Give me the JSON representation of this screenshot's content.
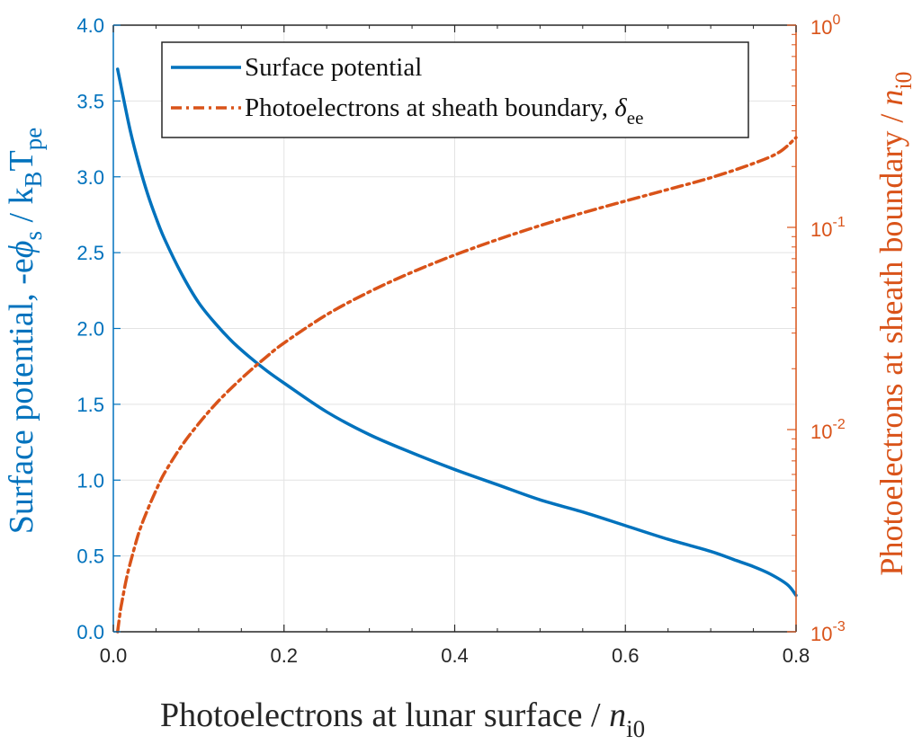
{
  "chart_data": {
    "type": "line",
    "xlabel": {
      "text": "Photoelectrons at lunar surface / ",
      "italic": "n",
      "sub": "i0"
    },
    "ylabel_left": {
      "text": "Surface potential,  -e",
      "phi": "ϕ",
      "sub_s": "s",
      "mid": " / k",
      "sub_b": "B",
      "t": "T",
      "sub_pe": "pe"
    },
    "ylabel_right": {
      "text": "Photoelectrons at sheath boundary / ",
      "italic": "n",
      "sub": "i0"
    },
    "xlim": [
      0.0,
      0.8
    ],
    "ylim_left": [
      0.0,
      4.0
    ],
    "ylim_right": [
      0.001,
      1.0
    ],
    "right_scale": "log",
    "grid": true,
    "legend_placement": "top-center",
    "x_ticks": [
      "0.0",
      "0.2",
      "0.4",
      "0.6",
      "0.8"
    ],
    "x_tick_values": [
      0.0,
      0.2,
      0.4,
      0.6,
      0.8
    ],
    "y_left_ticks": [
      "0.0",
      "0.5",
      "1.0",
      "1.5",
      "2.0",
      "2.5",
      "3.0",
      "3.5",
      "4.0"
    ],
    "y_left_tick_values": [
      0.0,
      0.5,
      1.0,
      1.5,
      2.0,
      2.5,
      3.0,
      3.5,
      4.0
    ],
    "y_right_ticks": [
      {
        "base": "10",
        "exp": "-3",
        "value": 0.001
      },
      {
        "base": "10",
        "exp": "-2",
        "value": 0.01
      },
      {
        "base": "10",
        "exp": "-1",
        "value": 0.1
      },
      {
        "base": "10",
        "exp": "0",
        "value": 1.0
      }
    ],
    "series": [
      {
        "name": "Surface potential",
        "axis": "left",
        "color": "#0072BD",
        "style": "solid",
        "x": [
          0.005,
          0.01,
          0.02,
          0.03,
          0.04,
          0.05,
          0.06,
          0.08,
          0.1,
          0.12,
          0.14,
          0.16,
          0.18,
          0.2,
          0.25,
          0.3,
          0.35,
          0.4,
          0.45,
          0.5,
          0.55,
          0.6,
          0.65,
          0.7,
          0.73,
          0.75,
          0.77,
          0.79,
          0.8
        ],
        "y": [
          3.71,
          3.57,
          3.3,
          3.08,
          2.89,
          2.73,
          2.59,
          2.36,
          2.17,
          2.03,
          1.91,
          1.81,
          1.72,
          1.64,
          1.45,
          1.3,
          1.18,
          1.07,
          0.97,
          0.87,
          0.79,
          0.7,
          0.61,
          0.53,
          0.47,
          0.43,
          0.38,
          0.31,
          0.24
        ]
      },
      {
        "name_prefix": "Photoelectrons at sheath boundary, ",
        "name_symbol": "δ",
        "name_sub": "ee",
        "axis": "right",
        "color": "#D95319",
        "style": "dashdot",
        "x": [
          0.005,
          0.008,
          0.01,
          0.015,
          0.02,
          0.03,
          0.04,
          0.05,
          0.06,
          0.08,
          0.1,
          0.12,
          0.14,
          0.16,
          0.18,
          0.2,
          0.25,
          0.3,
          0.35,
          0.4,
          0.45,
          0.5,
          0.55,
          0.6,
          0.65,
          0.7,
          0.75,
          0.78,
          0.8
        ],
        "y": [
          0.001,
          0.00125,
          0.0014,
          0.0018,
          0.0022,
          0.0031,
          0.004,
          0.005,
          0.0061,
          0.0083,
          0.0107,
          0.0134,
          0.0163,
          0.0195,
          0.023,
          0.0268,
          0.037,
          0.048,
          0.06,
          0.073,
          0.087,
          0.102,
          0.118,
          0.135,
          0.154,
          0.176,
          0.207,
          0.235,
          0.278
        ]
      }
    ],
    "legend": [
      {
        "label": "Surface potential"
      },
      {
        "label_prefix": "Photoelectrons at sheath boundary, ",
        "symbol": "δ",
        "sub": "ee"
      }
    ]
  }
}
